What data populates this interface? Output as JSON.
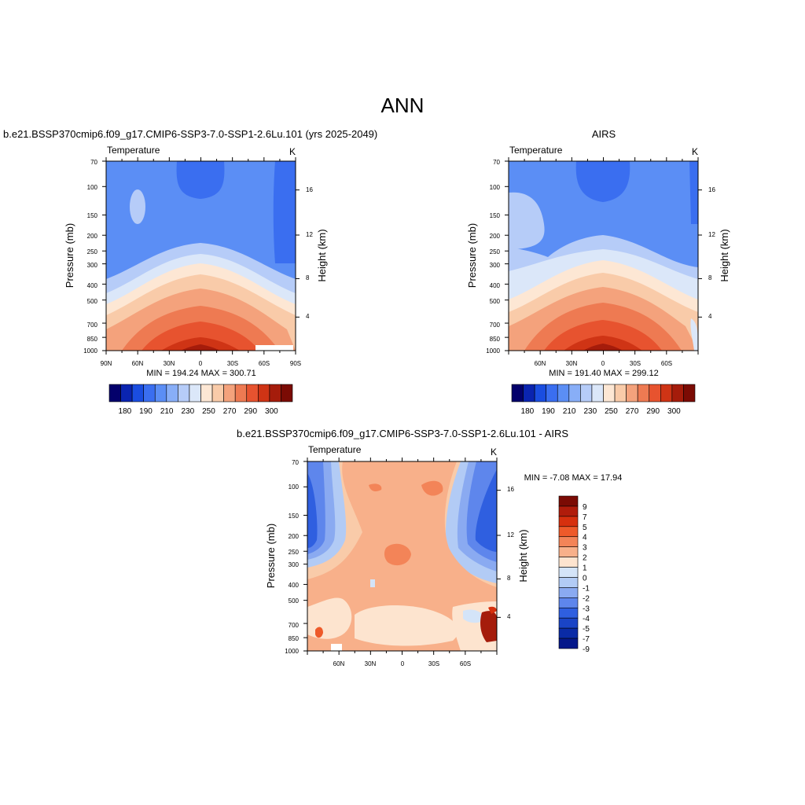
{
  "main_title": "ANN",
  "chart_data": [
    {
      "type": "heatmap",
      "title": "b.e21.BSSP370cmip6.f09_g17.CMIP6-SSP3-7.0-SSP1-2.6Lu.101 (yrs 2025-2049)",
      "subtitle_left": "Temperature",
      "units": "K",
      "ylabel": "Pressure (mb)",
      "ylabel_right": "Height (km)",
      "x_ticks": [
        "90N",
        "60N",
        "30N",
        "0",
        "30S",
        "60S",
        "90S"
      ],
      "y_ticks": [
        "70",
        "100",
        "150",
        "200",
        "250",
        "300",
        "400",
        "500",
        "700",
        "850",
        "1000"
      ],
      "y_right_ticks": [
        "16",
        "12",
        "8",
        "4"
      ],
      "min_max_text": "MIN = 194.24  MAX = 300.71",
      "min": 194.24,
      "max": 300.71,
      "colorbar_labels": [
        "180",
        "190",
        "210",
        "230",
        "250",
        "270",
        "290",
        "300"
      ]
    },
    {
      "type": "heatmap",
      "title": "AIRS",
      "subtitle_left": "Temperature",
      "units": "K",
      "ylabel": "Pressure (mb)",
      "ylabel_right": "Height (km)",
      "x_ticks": [
        "60N",
        "30N",
        "0",
        "30S",
        "60S"
      ],
      "y_ticks": [
        "70",
        "100",
        "150",
        "200",
        "250",
        "300",
        "400",
        "500",
        "700",
        "850",
        "1000"
      ],
      "y_right_ticks": [
        "16",
        "12",
        "8",
        "4"
      ],
      "min_max_text": "MIN = 191.40  MAX = 299.12",
      "min": 191.4,
      "max": 299.12,
      "colorbar_labels": [
        "180",
        "190",
        "210",
        "230",
        "250",
        "270",
        "290",
        "300"
      ]
    },
    {
      "type": "heatmap",
      "title": "b.e21.BSSP370cmip6.f09_g17.CMIP6-SSP3-7.0-SSP1-2.6Lu.101 - AIRS",
      "subtitle_left": "Temperature",
      "units": "K",
      "ylabel": "Pressure (mb)",
      "ylabel_right": "Height (km)",
      "x_ticks": [
        "60N",
        "30N",
        "0",
        "30S",
        "60S"
      ],
      "y_ticks": [
        "70",
        "100",
        "150",
        "200",
        "250",
        "300",
        "400",
        "500",
        "700",
        "850",
        "1000"
      ],
      "y_right_ticks": [
        "16",
        "12",
        "8",
        "4"
      ],
      "min_max_text": "MIN =  -7.08  MAX =  17.94",
      "min": -7.08,
      "max": 17.94,
      "colorbar_labels": [
        "9",
        "7",
        "5",
        "4",
        "3",
        "2",
        "1",
        "0",
        "-1",
        "-2",
        "-3",
        "-4",
        "-5",
        "-7",
        "-9"
      ]
    }
  ],
  "colors": {
    "temp_scale": [
      "#03006b",
      "#0a24b0",
      "#1a4de0",
      "#3a6ef0",
      "#5b8ef5",
      "#88aef7",
      "#b6ccf8",
      "#dbe7f9",
      "#fde7d4",
      "#f9cba9",
      "#f4a27c",
      "#ee7a52",
      "#e7532f",
      "#cf3415",
      "#a51c0b",
      "#7b0b04"
    ],
    "diff_scale": [
      "#7b0b04",
      "#b01c0b",
      "#d6300e",
      "#ee5a2a",
      "#f38458",
      "#f8b08a",
      "#fde4cf",
      "#d4e4f8",
      "#b2cbf5",
      "#8aaaf1",
      "#5e86ec",
      "#2f5fe0",
      "#1a44c6",
      "#0a2ba6",
      "#05188a"
    ]
  }
}
